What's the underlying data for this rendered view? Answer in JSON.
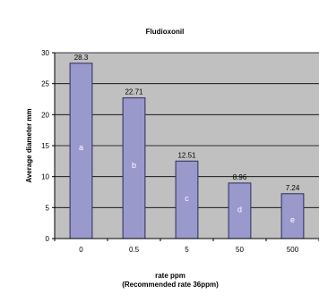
{
  "chart_data": {
    "type": "bar",
    "title": "Fludioxonil",
    "xlabel": "rate ppm",
    "xlabel_line2": "(Recommended rate 36ppm)",
    "ylabel": "Average diameter mm",
    "categories": [
      "0",
      "0.5",
      "5",
      "50",
      "500"
    ],
    "values": [
      28.3,
      22.71,
      12.51,
      8.96,
      7.24
    ],
    "value_labels": [
      "28.3",
      "22.71",
      "12.51",
      "8.96",
      "7.24"
    ],
    "group_letters": [
      "a",
      "b",
      "c",
      "d",
      "e"
    ],
    "ylim": [
      0,
      30
    ],
    "yticks": [
      0,
      5,
      10,
      15,
      20,
      25,
      30
    ],
    "grid": true,
    "legend": "none",
    "colors": {
      "bar_fill": "#9999cc",
      "bar_stroke": "#2b2b5c",
      "plot_background": "#c0c0c0",
      "gridline": "#000000"
    }
  }
}
